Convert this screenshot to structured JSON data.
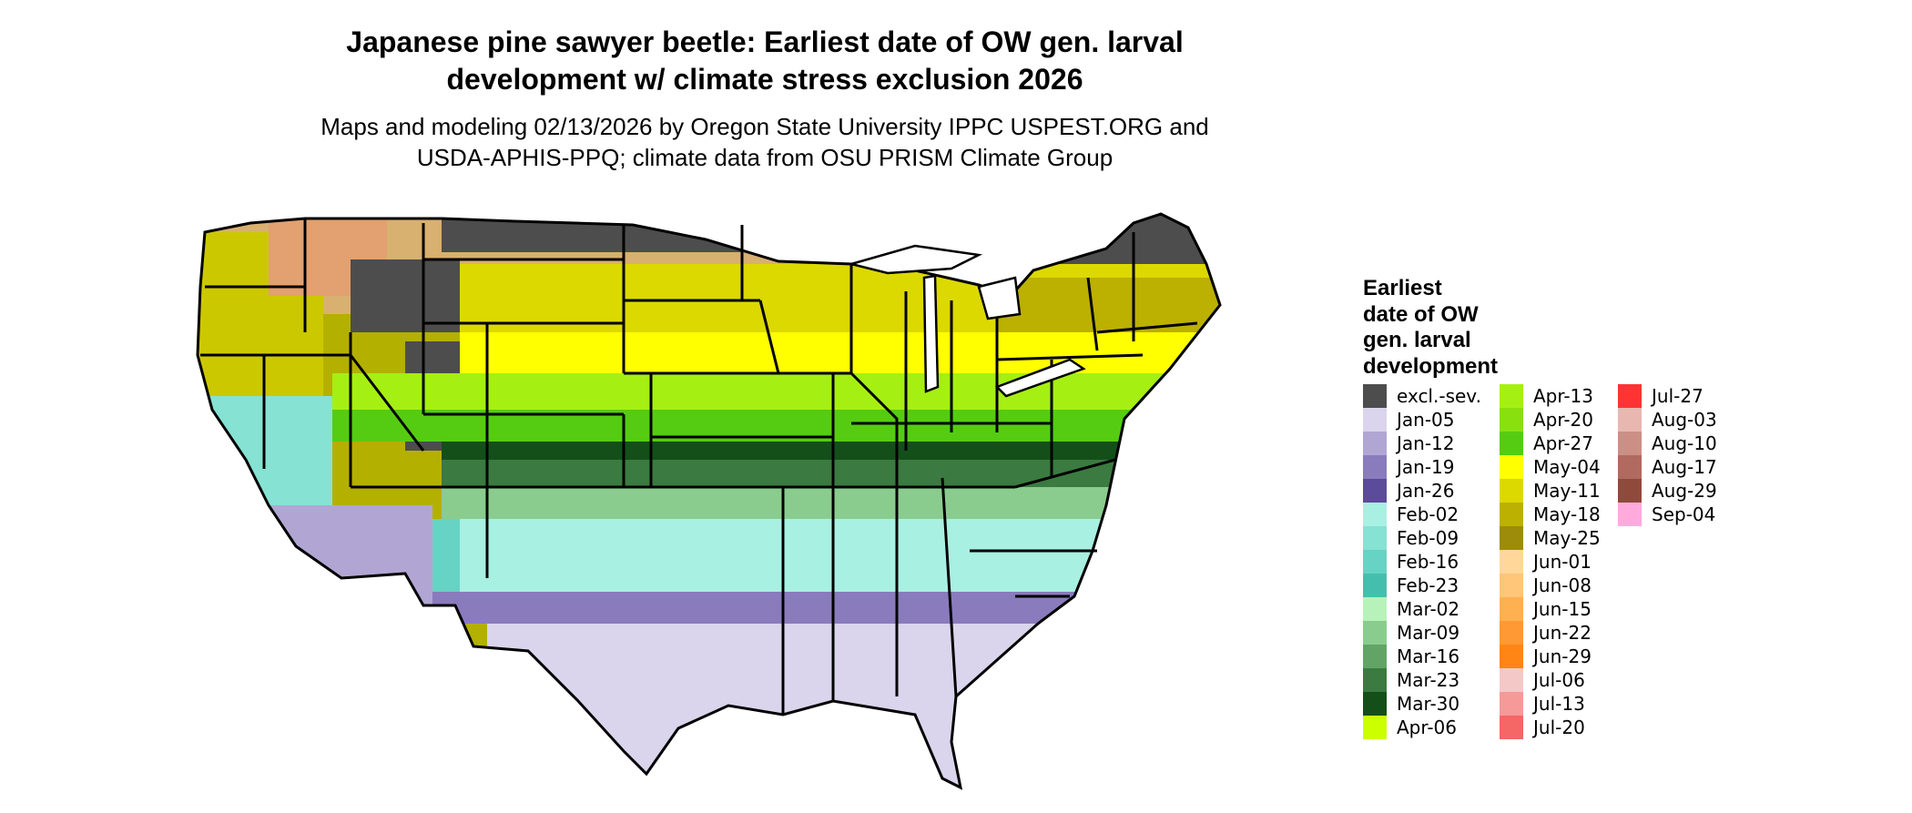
{
  "title": {
    "line1": "Japanese pine sawyer beetle: Earliest date of OW gen. larval",
    "line2": "development w/ climate stress exclusion 2026"
  },
  "subtitle": {
    "line1": "Maps and modeling 02/13/2026 by Oregon State University IPPC USPEST.ORG and",
    "line2": "USDA-APHIS-PPQ; climate data from OSU PRISM Climate Group"
  },
  "legend": {
    "title_lines": [
      "Earliest",
      "date of OW",
      "gen. larval",
      "development"
    ],
    "columns": [
      [
        {
          "label": "excl.-sev.",
          "color": "#4d4d4d"
        },
        {
          "label": "Jan-05",
          "color": "#dad4ec"
        },
        {
          "label": "Jan-12",
          "color": "#b1a6d3"
        },
        {
          "label": "Jan-19",
          "color": "#8a7bbd"
        },
        {
          "label": "Jan-26",
          "color": "#5c4a9a"
        },
        {
          "label": "Feb-02",
          "color": "#a8f0e2"
        },
        {
          "label": "Feb-09",
          "color": "#86e2d2"
        },
        {
          "label": "Feb-16",
          "color": "#66d3c4"
        },
        {
          "label": "Feb-23",
          "color": "#45bfad"
        },
        {
          "label": "Mar-02",
          "color": "#b8f2bb"
        },
        {
          "label": "Mar-09",
          "color": "#8acc8e"
        },
        {
          "label": "Mar-16",
          "color": "#62a466"
        },
        {
          "label": "Mar-23",
          "color": "#3b7a40"
        },
        {
          "label": "Mar-30",
          "color": "#144f1a"
        },
        {
          "label": "Apr-06",
          "color": "#ccff00"
        }
      ],
      [
        {
          "label": "Apr-13",
          "color": "#a6ef12"
        },
        {
          "label": "Apr-20",
          "color": "#88e00f"
        },
        {
          "label": "Apr-27",
          "color": "#55cc12"
        },
        {
          "label": "May-04",
          "color": "#ffff00"
        },
        {
          "label": "May-11",
          "color": "#dcd900"
        },
        {
          "label": "May-18",
          "color": "#bcb000"
        },
        {
          "label": "May-25",
          "color": "#9c8c0a"
        },
        {
          "label": "Jun-01",
          "color": "#ffd79a"
        },
        {
          "label": "Jun-08",
          "color": "#ffc579"
        },
        {
          "label": "Jun-15",
          "color": "#ffb050"
        },
        {
          "label": "Jun-22",
          "color": "#ff9933"
        },
        {
          "label": "Jun-29",
          "color": "#ff8514"
        },
        {
          "label": "Jul-06",
          "color": "#f5c8c8"
        },
        {
          "label": "Jul-13",
          "color": "#f59999"
        },
        {
          "label": "Jul-20",
          "color": "#f56666"
        }
      ],
      [
        {
          "label": "Jul-27",
          "color": "#ff3333"
        },
        {
          "label": "Aug-03",
          "color": "#e8b7b0"
        },
        {
          "label": "Aug-10",
          "color": "#cc8f86"
        },
        {
          "label": "Aug-17",
          "color": "#b06a5f"
        },
        {
          "label": "Aug-29",
          "color": "#8f4a3c"
        },
        {
          "label": "Sep-04",
          "color": "#ffaadd"
        }
      ]
    ]
  }
}
